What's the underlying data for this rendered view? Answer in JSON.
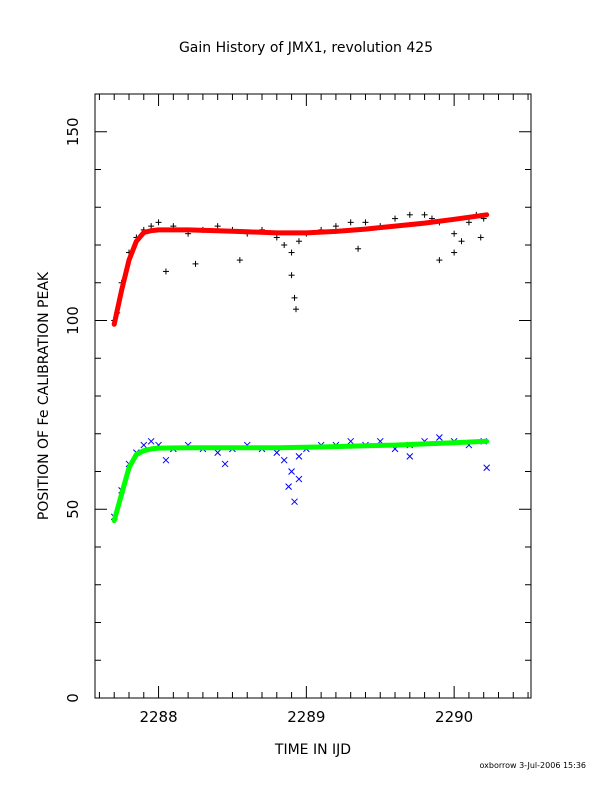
{
  "chart_data": {
    "type": "scatter",
    "title": "Gain History of JMX1, revolution 425",
    "xlabel": "TIME IN IJD",
    "ylabel": "POSITION OF Fe CALIBRATION PEAK",
    "xlim": [
      2287.57,
      2290.52
    ],
    "ylim": [
      0,
      160
    ],
    "xticks": [
      2288,
      2289,
      2290
    ],
    "yticks": [
      0,
      50,
      100,
      150
    ],
    "grid": false,
    "footer": "oxborrow  3-Jul-2006 15:36",
    "colors": {
      "upper_points": "#000000",
      "upper_fit": "#ff0000",
      "lower_points": "#0000ff",
      "lower_fit": "#00ff00"
    },
    "series": [
      {
        "marker": "plus",
        "color": "#000000",
        "x": [
          2287.7,
          2287.75,
          2287.8,
          2287.85,
          2287.9,
          2287.95,
          2288.0,
          2288.1,
          2288.2,
          2288.3,
          2288.4,
          2288.5,
          2288.6,
          2288.7,
          2288.8,
          2288.85,
          2288.9,
          2288.95,
          2289.0,
          2289.1,
          2289.2,
          2289.3,
          2289.4,
          2289.5,
          2289.6,
          2289.7,
          2289.8,
          2289.85,
          2289.9,
          2290.0,
          2290.05,
          2290.1,
          2290.15,
          2290.2,
          2287.72,
          2288.05,
          2288.25,
          2288.55,
          2288.9,
          2288.92,
          2289.35,
          2289.9,
          2290.0,
          2290.18,
          2288.93
        ],
        "y": [
          100,
          110,
          118,
          122,
          124,
          125,
          126,
          125,
          123,
          124,
          125,
          124,
          123,
          124,
          122,
          120,
          118,
          121,
          123,
          124,
          125,
          126,
          126,
          125,
          127,
          128,
          128,
          127,
          126,
          123,
          121,
          126,
          128,
          127,
          102,
          113,
          115,
          116,
          112,
          106,
          119,
          116,
          118,
          122,
          103
        ]
      },
      {
        "name": "",
        "marker": "line",
        "color": "#ff0000",
        "x": [
          2287.7,
          2287.75,
          2287.8,
          2287.85,
          2287.9,
          2287.95,
          2288.0,
          2288.2,
          2288.4,
          2288.6,
          2288.8,
          2289.0,
          2289.2,
          2289.4,
          2289.6,
          2289.8,
          2290.0,
          2290.22
        ],
        "y": [
          99,
          108,
          116,
          121,
          123.3,
          123.8,
          124,
          124,
          123.8,
          123.5,
          123.2,
          123.2,
          123.6,
          124.2,
          125,
          125.8,
          126.8,
          128
        ]
      },
      {
        "marker": "cross",
        "color": "#0000ff",
        "x": [
          2287.7,
          2287.75,
          2287.8,
          2287.85,
          2287.9,
          2287.95,
          2288.0,
          2288.1,
          2288.2,
          2288.3,
          2288.4,
          2288.5,
          2288.6,
          2288.7,
          2288.8,
          2288.85,
          2288.9,
          2288.95,
          2289.0,
          2289.1,
          2289.2,
          2289.3,
          2289.4,
          2289.5,
          2289.6,
          2289.7,
          2289.8,
          2289.9,
          2290.0,
          2290.1,
          2290.2,
          2288.88,
          2288.92,
          2288.95,
          2288.05,
          2288.45,
          2289.7,
          2290.22
        ],
        "y": [
          48,
          55,
          62,
          65,
          67,
          68,
          67,
          66,
          67,
          66,
          65,
          66,
          67,
          66,
          65,
          63,
          60,
          64,
          66,
          67,
          67,
          68,
          67,
          68,
          66,
          67,
          68,
          69,
          68,
          67,
          68,
          56,
          52,
          58,
          63,
          62,
          64,
          61
        ]
      },
      {
        "marker": "line",
        "color": "#00ff00",
        "x": [
          2287.7,
          2287.75,
          2287.8,
          2287.85,
          2287.9,
          2287.95,
          2288.0,
          2288.2,
          2288.4,
          2288.6,
          2288.8,
          2289.0,
          2289.2,
          2289.4,
          2289.6,
          2289.8,
          2290.0,
          2290.22
        ],
        "y": [
          47,
          54,
          61,
          64.5,
          65.5,
          66,
          66.2,
          66.3,
          66.3,
          66.3,
          66.3,
          66.4,
          66.6,
          66.8,
          67,
          67.3,
          67.6,
          68
        ]
      }
    ]
  }
}
